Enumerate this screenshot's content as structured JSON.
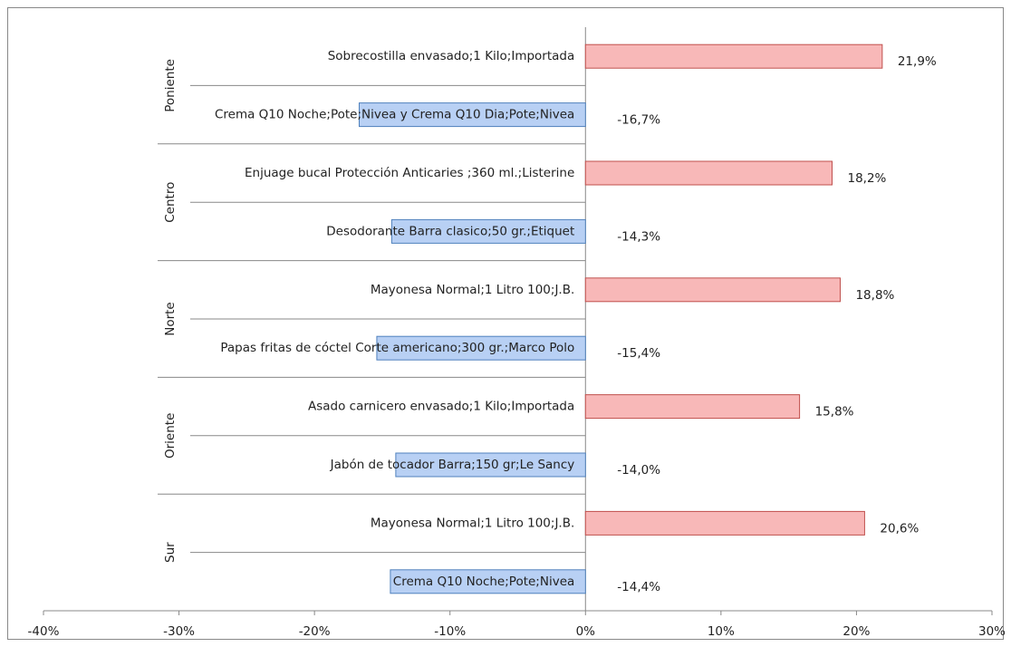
{
  "chart_data": {
    "type": "bar",
    "orientation": "horizontal",
    "groups": [
      "Poniente",
      "Centro",
      "Norte",
      "Oriente",
      "Sur"
    ],
    "categories": [
      "Sobrecostilla envasado;1 Kilo;Importada",
      "Crema Q10 Noche;Pote;Nivea y Crema Q10 Dia;Pote;Nivea",
      "Enjuage bucal Protección Anticaries ;360 ml.;Listerine",
      "Desodorante  Barra clasico;50 gr.;Etiquet",
      "Mayonesa Normal;1 Litro 100;J.B.",
      "Papas fritas de cóctel Corte americano;300 gr.;Marco Polo",
      "Asado carnicero envasado;1 Kilo;Importada",
      "Jabón de tocador  Barra;150 gr;Le Sancy",
      "Mayonesa Normal;1 Litro 100;J.B.",
      "Crema Q10 Noche;Pote;Nivea"
    ],
    "values": [
      21.9,
      -16.7,
      18.2,
      -14.3,
      18.8,
      -15.4,
      15.8,
      -14.0,
      20.6,
      -14.4
    ],
    "value_labels": [
      "21,9%",
      "-16,7%",
      "18,2%",
      "-14,3%",
      "18,8%",
      "-15,4%",
      "15,8%",
      "-14,0%",
      "20,6%",
      "-14,4%"
    ],
    "colors": [
      "#f8b8b8",
      "#b8d0f4",
      "#f8b8b8",
      "#b8d0f4",
      "#f8b8b8",
      "#b8d0f4",
      "#f8b8b8",
      "#b8d0f4",
      "#f8b8b8",
      "#b8d0f4"
    ],
    "edge_colors": [
      "#c0504d",
      "#4f81bd",
      "#c0504d",
      "#4f81bd",
      "#c0504d",
      "#4f81bd",
      "#c0504d",
      "#4f81bd",
      "#c0504d",
      "#4f81bd"
    ],
    "xlim": [
      -40,
      30
    ],
    "xticks": [
      {
        "value": -40,
        "label": "-40%"
      },
      {
        "value": -30,
        "label": "-30%"
      },
      {
        "value": -20,
        "label": "-20%"
      },
      {
        "value": -10,
        "label": "-10%"
      },
      {
        "value": 0,
        "label": "0%"
      },
      {
        "value": 10,
        "label": "10%"
      },
      {
        "value": 20,
        "label": "20%"
      },
      {
        "value": 30,
        "label": "30%"
      }
    ]
  }
}
